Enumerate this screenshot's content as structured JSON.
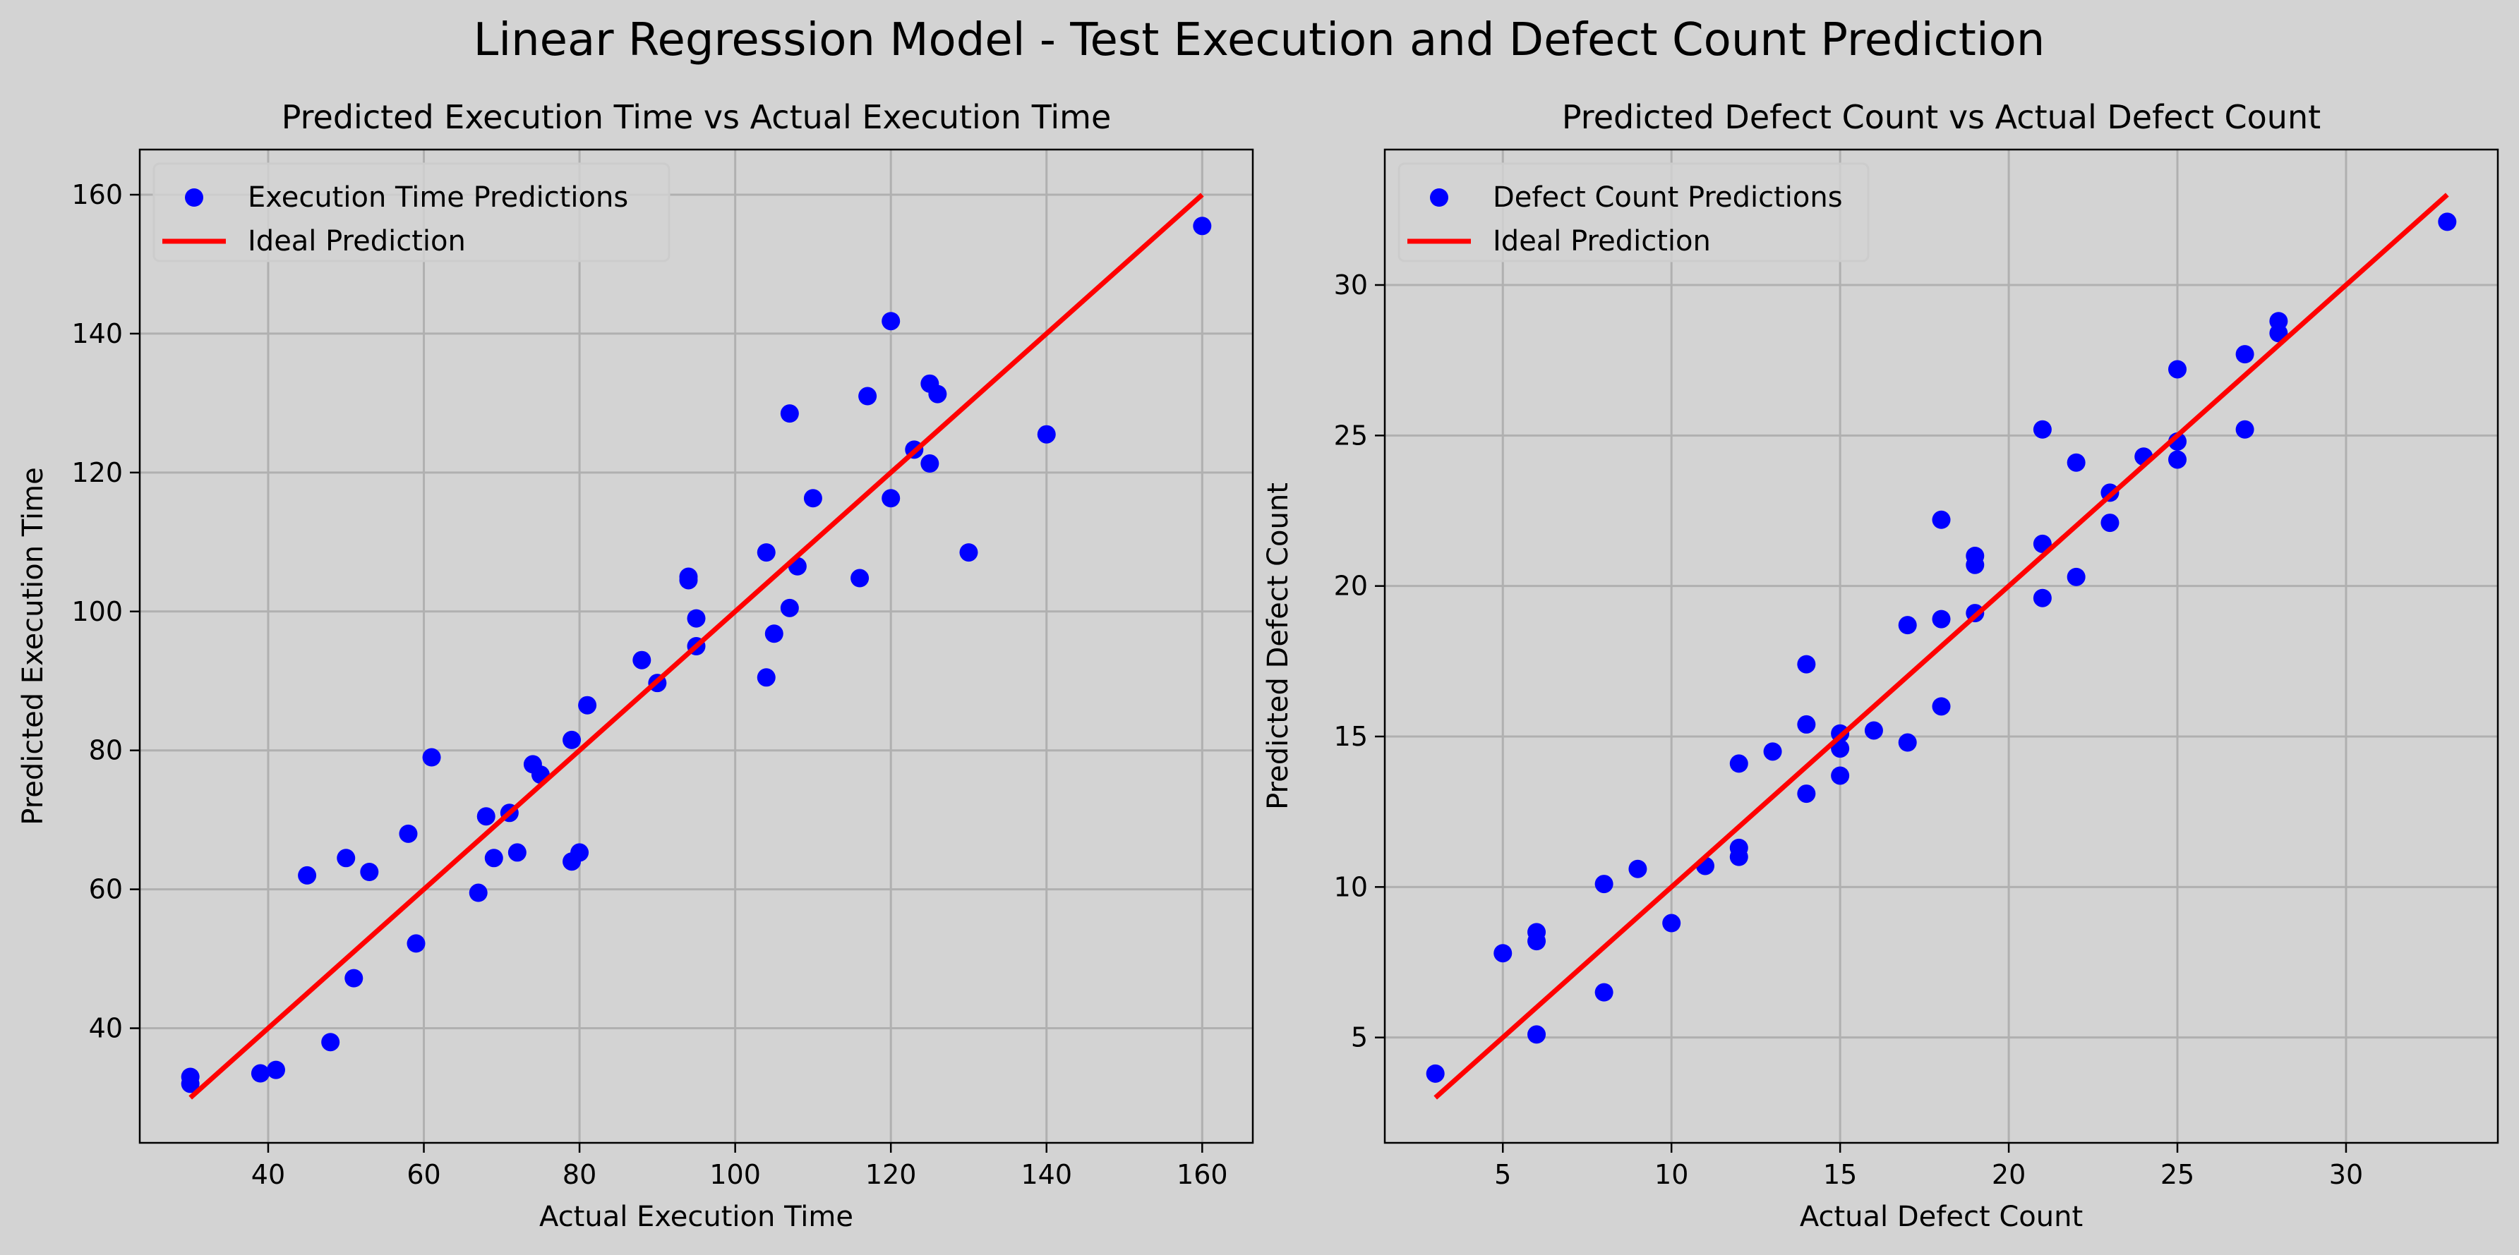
{
  "title": "Linear Regression Model - Test Execution and Defect Count Prediction",
  "colors": {
    "figure_bg": "#d3d3d3",
    "axes_bg": "#d3d3d3",
    "points": "#0000ff",
    "ideal_line": "#ff0000",
    "grid": "#b0b0b0"
  },
  "chart_data": [
    {
      "type": "scatter",
      "title": "Predicted Execution Time vs Actual Execution Time",
      "xlabel": "Actual Execution Time",
      "ylabel": "Predicted Execution Time",
      "xlim": [
        23.5,
        166.5
      ],
      "ylim": [
        23.5,
        166.5
      ],
      "xticks": [
        40,
        60,
        80,
        100,
        120,
        140,
        160
      ],
      "yticks": [
        40,
        60,
        80,
        100,
        120,
        140,
        160
      ],
      "grid": true,
      "legend_position": "top-left",
      "series": [
        {
          "name": "Execution Time Predictions",
          "kind": "scatter",
          "points": [
            [
              30,
              33
            ],
            [
              30,
              32
            ],
            [
              39,
              33.5
            ],
            [
              41,
              34
            ],
            [
              45,
              62
            ],
            [
              48,
              38
            ],
            [
              50,
              64.5
            ],
            [
              51,
              47.2
            ],
            [
              53,
              62.5
            ],
            [
              58,
              68
            ],
            [
              59,
              52.2
            ],
            [
              61,
              79
            ],
            [
              67,
              59.5
            ],
            [
              68,
              70.5
            ],
            [
              69,
              64.5
            ],
            [
              71,
              71
            ],
            [
              72,
              65.3
            ],
            [
              74,
              78
            ],
            [
              75,
              76.5
            ],
            [
              79,
              64
            ],
            [
              79,
              81.5
            ],
            [
              80,
              65.3
            ],
            [
              81,
              86.5
            ],
            [
              88,
              93
            ],
            [
              90,
              89.7
            ],
            [
              94,
              105
            ],
            [
              94,
              104.5
            ],
            [
              95,
              99
            ],
            [
              95,
              95
            ],
            [
              104,
              108.5
            ],
            [
              104,
              90.5
            ],
            [
              105,
              96.8
            ],
            [
              107,
              100.5
            ],
            [
              107,
              128.5
            ],
            [
              108,
              106.5
            ],
            [
              110,
              116.3
            ],
            [
              116,
              104.8
            ],
            [
              117,
              131
            ],
            [
              120,
              116.3
            ],
            [
              120,
              141.8
            ],
            [
              123,
              123.3
            ],
            [
              125,
              121.3
            ],
            [
              125,
              132.8
            ],
            [
              126,
              131.3
            ],
            [
              130,
              108.5
            ],
            [
              140,
              125.5
            ],
            [
              160,
              155.5
            ]
          ]
        },
        {
          "name": "Ideal Prediction",
          "kind": "line",
          "points": [
            [
              30,
              30
            ],
            [
              160,
              160
            ]
          ]
        }
      ]
    },
    {
      "type": "scatter",
      "title": "Predicted Defect Count vs Actual Defect Count",
      "xlabel": "Actual Defect Count",
      "ylabel": "Predicted Defect Count",
      "xlim": [
        1.5,
        34.5
      ],
      "ylim": [
        1.5,
        34.5
      ],
      "xticks": [
        5,
        10,
        15,
        20,
        25,
        30
      ],
      "yticks": [
        5,
        10,
        15,
        20,
        25,
        30
      ],
      "grid": true,
      "legend_position": "top-left",
      "series": [
        {
          "name": "Defect Count Predictions",
          "kind": "scatter",
          "points": [
            [
              3,
              3.8
            ],
            [
              5,
              7.8
            ],
            [
              6,
              8.5
            ],
            [
              6,
              8.2
            ],
            [
              6,
              5.1
            ],
            [
              8,
              10.1
            ],
            [
              8,
              6.5
            ],
            [
              9,
              10.6
            ],
            [
              10,
              8.8
            ],
            [
              11,
              10.7
            ],
            [
              12,
              11.3
            ],
            [
              12,
              11.0
            ],
            [
              12,
              14.1
            ],
            [
              13,
              14.5
            ],
            [
              14,
              17.4
            ],
            [
              14,
              15.4
            ],
            [
              14,
              13.1
            ],
            [
              15,
              15.1
            ],
            [
              15,
              14.6
            ],
            [
              15,
              13.7
            ],
            [
              16,
              15.2
            ],
            [
              17,
              14.8
            ],
            [
              17,
              18.7
            ],
            [
              18,
              18.9
            ],
            [
              18,
              22.2
            ],
            [
              18,
              16.0
            ],
            [
              19,
              21.0
            ],
            [
              19,
              20.7
            ],
            [
              19,
              19.1
            ],
            [
              21,
              25.2
            ],
            [
              21,
              21.4
            ],
            [
              21,
              19.6
            ],
            [
              22,
              24.1
            ],
            [
              22,
              20.3
            ],
            [
              23,
              23.1
            ],
            [
              23,
              22.1
            ],
            [
              24,
              24.3
            ],
            [
              25,
              27.2
            ],
            [
              25,
              24.8
            ],
            [
              25,
              24.2
            ],
            [
              27,
              27.7
            ],
            [
              27,
              25.2
            ],
            [
              28,
              28.8
            ],
            [
              28,
              28.4
            ],
            [
              33,
              32.1
            ]
          ]
        },
        {
          "name": "Ideal Prediction",
          "kind": "line",
          "points": [
            [
              3,
              3
            ],
            [
              33,
              33
            ]
          ]
        }
      ]
    }
  ]
}
